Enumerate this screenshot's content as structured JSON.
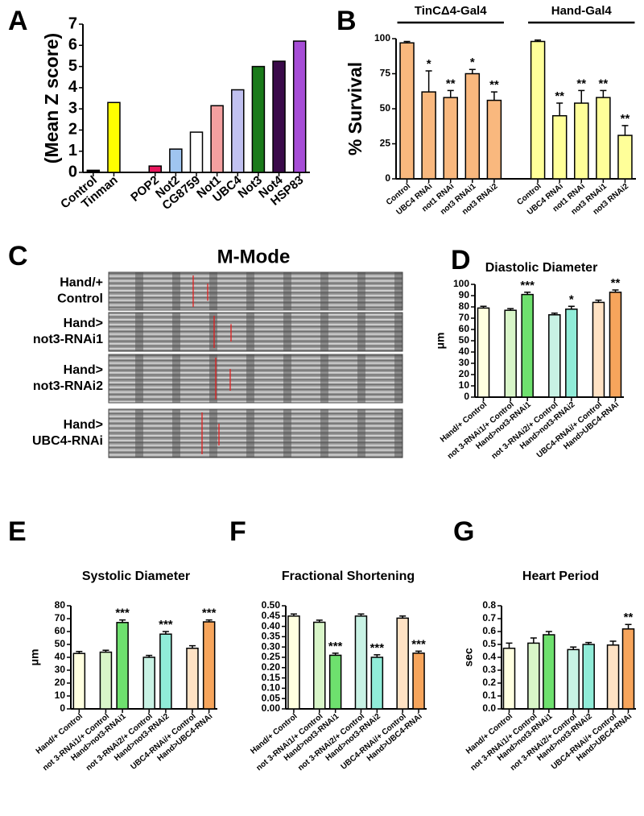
{
  "chart_data": [
    {
      "type": "bar",
      "panel": "A",
      "ylabel": "(Mean Z score)",
      "categories": [
        "Control",
        "Tinman",
        null,
        "POP2",
        "Not2",
        "CG8759",
        "Not1",
        "UBC4",
        "Not3",
        "Not4",
        "HSP83"
      ],
      "values": [
        0.1,
        3.3,
        null,
        0.3,
        1.1,
        1.9,
        3.15,
        3.9,
        5.0,
        5.25,
        6.2
      ],
      "colors": [
        "#000000",
        "#ffff00",
        null,
        "#e8175d",
        "#9fc5f0",
        "#ffffff",
        "#f4a0a0",
        "#c0c0f0",
        "#1a7a1a",
        "#3a0a4a",
        "#a64dd6"
      ],
      "ylim": [
        0,
        7
      ],
      "yticks": [
        0,
        1,
        2,
        3,
        4,
        5,
        6,
        7
      ]
    },
    {
      "type": "bar",
      "panel": "B",
      "ylabel": "% Survival",
      "groups": [
        "TinCΔ4-Gal4",
        "Hand-Gal4"
      ],
      "categories": [
        "Control",
        "UBC4 RNAi",
        "not1 RNAi",
        "not3 RNAi1",
        "not3 RNAi2",
        null,
        "Control",
        "UBC4 RNAi",
        "not1 RNAi",
        "not3 RNAi1",
        "not3 RNAi2"
      ],
      "values": [
        97,
        62,
        58,
        75,
        56,
        null,
        98,
        45,
        54,
        58,
        31
      ],
      "errors": [
        1,
        15,
        5,
        3,
        6,
        null,
        1,
        9,
        9,
        5,
        7
      ],
      "annotations": [
        null,
        "*",
        "**",
        "*",
        "**",
        null,
        null,
        "**",
        "**",
        "**",
        "**"
      ],
      "colors": [
        "#f9b87e",
        "#f9b87e",
        "#f9b87e",
        "#f9b87e",
        "#f9b87e",
        null,
        "#ffff99",
        "#ffff99",
        "#ffff99",
        "#ffff99",
        "#ffff99"
      ],
      "ylim": [
        0,
        100
      ],
      "yticks": [
        0,
        25,
        50,
        75,
        100
      ]
    },
    {
      "type": "image",
      "panel": "C",
      "title": "M-Mode",
      "labels": [
        [
          "Hand/+",
          "Control"
        ],
        [
          "Hand>",
          "not3-RNAi1"
        ],
        [
          "Hand>",
          "not3-RNAi2"
        ],
        [
          "Hand>",
          "UBC4-RNAi"
        ]
      ]
    },
    {
      "type": "bar",
      "panel": "D",
      "title": "Diastolic Diameter",
      "ylabel": "μm",
      "categories": [
        "Hand/+ Control",
        "not 3-RNAi1/+ Control",
        "Hand>not3-RNAi1",
        "not 3-RNAi2/+ Control",
        "Hand>not3-RNAi2",
        "UBC4-RNAi/+ Control",
        "Hand>UBC4-RNAi"
      ],
      "values": [
        79,
        77,
        91,
        73,
        78,
        84,
        93
      ],
      "errors": [
        1.5,
        1.5,
        2,
        1.5,
        2.5,
        2,
        2
      ],
      "annotations": [
        null,
        null,
        "***",
        null,
        "*",
        null,
        "**"
      ],
      "colors": [
        "#ffffe0",
        "#d8f5c8",
        "#6ee06e",
        "#c8f2e4",
        "#90ecd8",
        "#ffe2c4",
        "#f7a55c"
      ],
      "ylim": [
        0,
        100
      ],
      "yticks": [
        0,
        10,
        20,
        30,
        40,
        50,
        60,
        70,
        80,
        90,
        100
      ]
    },
    {
      "type": "bar",
      "panel": "E",
      "title": "Systolic Diameter",
      "ylabel": "μm",
      "categories": [
        "Hand/+ Control",
        "not 3-RNAi1/+ Control",
        "Hand>not3-RNAi1",
        "not 3-RNAi2/+ Control",
        "Hand>not3-RNAi2",
        "UBC4-RNAi/+ Control",
        "Hand>UBC4-RNAi"
      ],
      "values": [
        43,
        44,
        67,
        40,
        58,
        47,
        67.5
      ],
      "errors": [
        1.5,
        1.5,
        2,
        1.5,
        2,
        2,
        1.5
      ],
      "annotations": [
        null,
        null,
        "***",
        null,
        "***",
        null,
        "***"
      ],
      "colors": [
        "#ffffe0",
        "#d8f5c8",
        "#6ee06e",
        "#c8f2e4",
        "#90ecd8",
        "#ffe2c4",
        "#f7a55c"
      ],
      "ylim": [
        0,
        80
      ],
      "yticks": [
        0,
        10,
        20,
        30,
        40,
        50,
        60,
        70,
        80
      ]
    },
    {
      "type": "bar",
      "panel": "F",
      "title": "Fractional Shortening",
      "categories": [
        "Hand/+ Control",
        "not 3-RNAi1/+ Control",
        "Hand>not3-RNAi1",
        "not 3-RNAi2/+ Control",
        "Hand>not3-RNAi2",
        "UBC4-RNAi/+ Control",
        "Hand>UBC4-RNAi"
      ],
      "values": [
        0.45,
        0.42,
        0.26,
        0.45,
        0.25,
        0.44,
        0.27
      ],
      "errors": [
        0.01,
        0.01,
        0.01,
        0.01,
        0.012,
        0.01,
        0.01
      ],
      "annotations": [
        null,
        null,
        "***",
        null,
        "***",
        null,
        "***"
      ],
      "colors": [
        "#ffffe0",
        "#d8f5c8",
        "#6ee06e",
        "#c8f2e4",
        "#90ecd8",
        "#ffe2c4",
        "#f7a55c"
      ],
      "ylim": [
        0,
        0.5
      ],
      "yticks": [
        {
          "value": 0,
          "label": "0.00"
        },
        0.05,
        {
          "value": 0.1,
          "label": "0.10"
        },
        0.15,
        {
          "value": 0.2,
          "label": "0.20"
        },
        0.25,
        {
          "value": 0.3,
          "label": "0.30"
        },
        0.35,
        {
          "value": 0.4,
          "label": "0.40"
        },
        0.45,
        {
          "value": 0.5,
          "label": "0.50"
        }
      ]
    },
    {
      "type": "bar",
      "panel": "G",
      "title": "Heart Period",
      "ylabel": "sec",
      "categories": [
        "Hand/+ Control",
        "not 3-RNAi1/+ Control",
        "Hand>not3-RNAi1",
        "not 3-RNAi2/+ Control",
        "Hand>not3-RNAi2",
        "UBC4-RNAi/+ Control",
        "Hand>UBC4-RNAi"
      ],
      "values": [
        0.47,
        0.51,
        0.575,
        0.46,
        0.5,
        0.495,
        0.62
      ],
      "errors": [
        0.04,
        0.04,
        0.025,
        0.02,
        0.015,
        0.03,
        0.035
      ],
      "annotations": [
        null,
        null,
        null,
        null,
        null,
        null,
        "**"
      ],
      "colors": [
        "#ffffe0",
        "#d8f5c8",
        "#6ee06e",
        "#c8f2e4",
        "#90ecd8",
        "#ffe2c4",
        "#f7a55c"
      ],
      "ylim": [
        0,
        0.8
      ],
      "yticks": [
        {
          "value": 0,
          "label": "0.0"
        },
        0.1,
        0.2,
        0.3,
        0.4,
        0.5,
        0.6,
        0.7,
        0.8
      ]
    }
  ]
}
